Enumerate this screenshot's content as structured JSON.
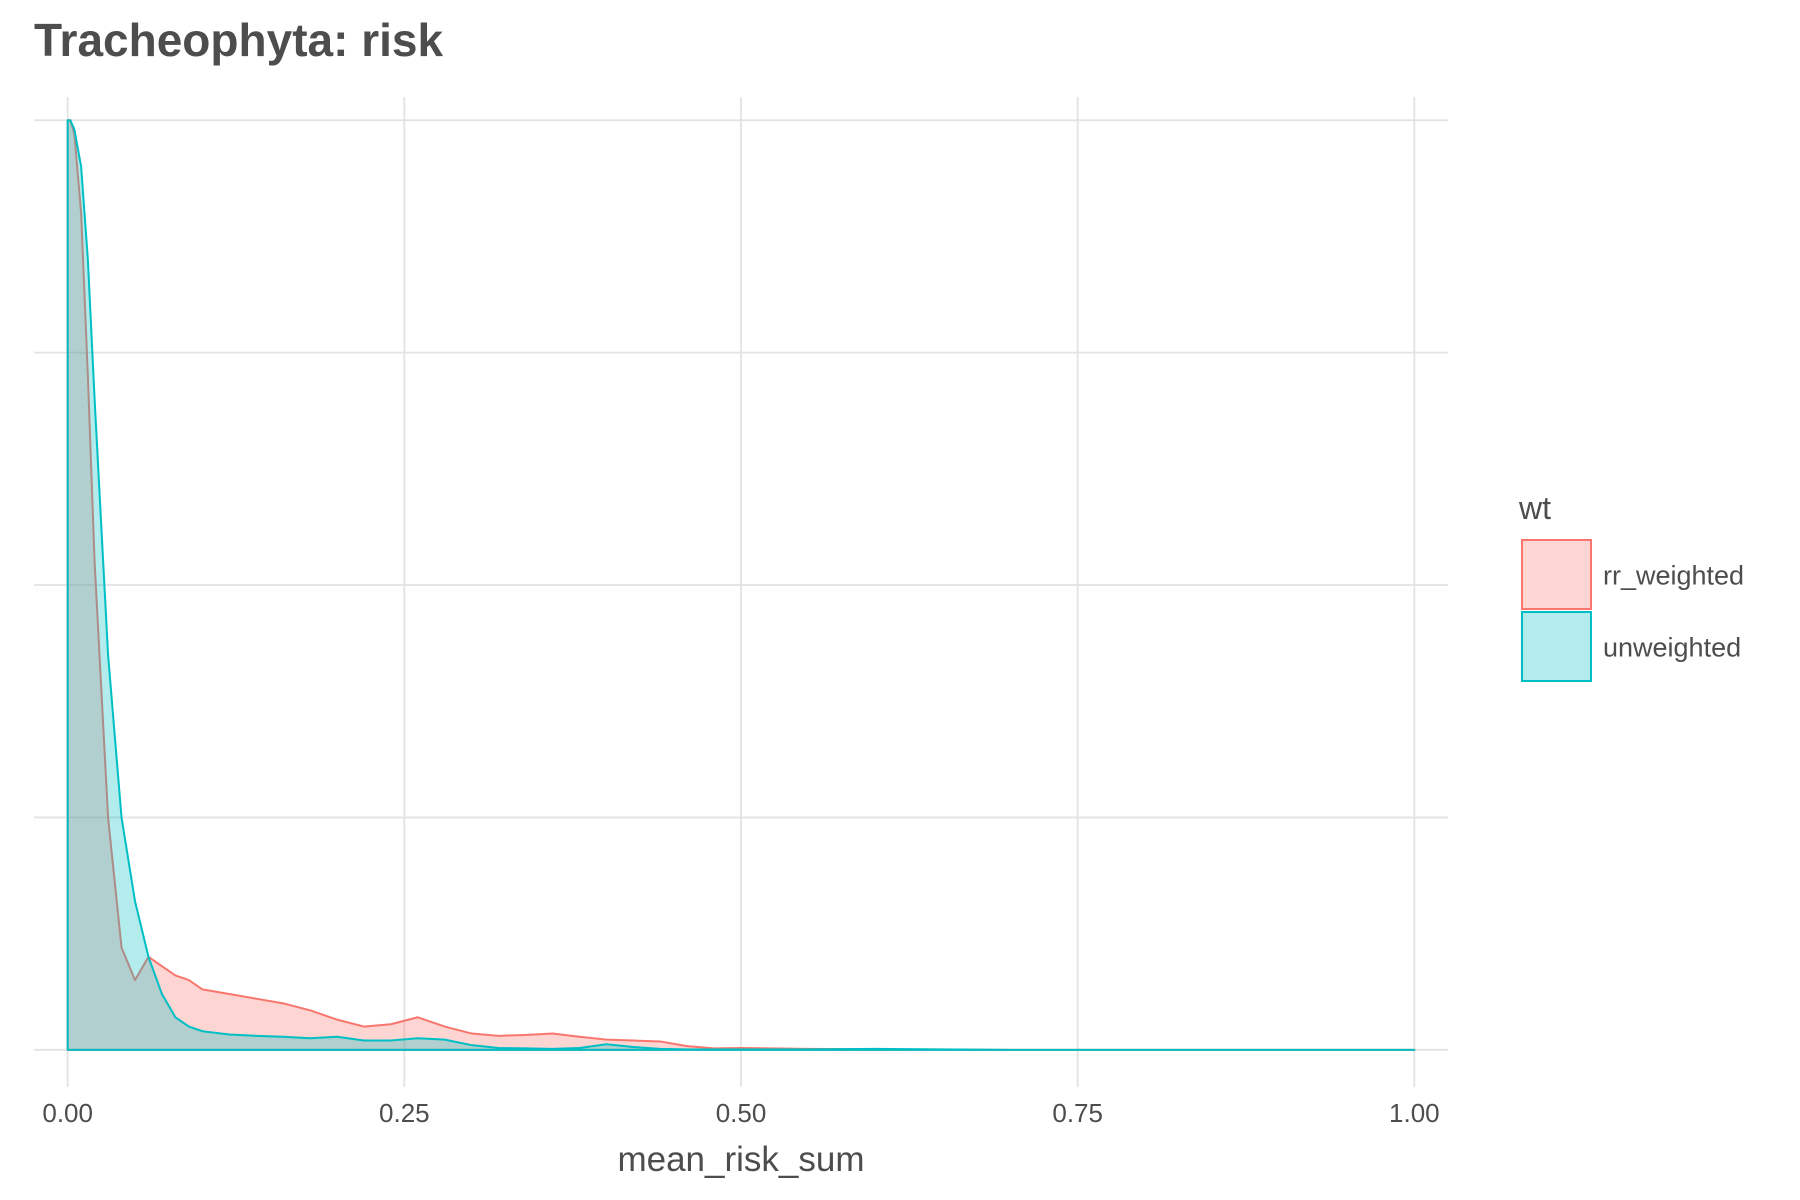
{
  "chart_data": {
    "type": "area",
    "title": "Tracheophyta: risk",
    "xlabel": "mean_risk_sum",
    "ylabel": "",
    "xlim": [
      -0.025,
      1.025
    ],
    "ylim": [
      -0.08,
      2.05
    ],
    "x_ticks": [
      0.0,
      0.25,
      0.5,
      0.75,
      1.0
    ],
    "x_tick_labels": [
      "0.00",
      "0.25",
      "0.50",
      "0.75",
      "1.00"
    ],
    "y_gridlines": [
      0,
      0.5,
      1.0,
      1.5,
      2.0
    ],
    "y_tick_labels_shown": false,
    "grid": true,
    "legend": {
      "title": "wt",
      "position": "right",
      "items": [
        {
          "label": "rr_weighted",
          "fill": "#f8766d",
          "stroke": "#f8766d"
        },
        {
          "label": "unweighted",
          "fill": "#00bfc4",
          "stroke": "#00bfc4"
        }
      ]
    },
    "fill_opacity": 0.3,
    "series": [
      {
        "name": "rr_weighted",
        "color": "#f8766d",
        "x": [
          0.0,
          0.002,
          0.005,
          0.01,
          0.015,
          0.02,
          0.03,
          0.04,
          0.05,
          0.06,
          0.07,
          0.08,
          0.09,
          0.1,
          0.12,
          0.14,
          0.16,
          0.18,
          0.2,
          0.22,
          0.24,
          0.26,
          0.28,
          0.3,
          0.32,
          0.34,
          0.36,
          0.38,
          0.4,
          0.42,
          0.44,
          0.46,
          0.48,
          0.5,
          0.55,
          0.6,
          0.7,
          0.8,
          0.9,
          1.0
        ],
        "y": [
          2.0,
          2.0,
          1.97,
          1.8,
          1.45,
          1.05,
          0.5,
          0.22,
          0.15,
          0.2,
          0.18,
          0.16,
          0.15,
          0.13,
          0.12,
          0.11,
          0.1,
          0.085,
          0.065,
          0.05,
          0.055,
          0.07,
          0.05,
          0.035,
          0.03,
          0.032,
          0.035,
          0.028,
          0.022,
          0.02,
          0.018,
          0.008,
          0.003,
          0.004,
          0.002,
          0.001,
          0.0,
          0.0,
          0.0,
          0.0
        ]
      },
      {
        "name": "unweighted",
        "color": "#00bfc4",
        "x": [
          0.0,
          0.002,
          0.005,
          0.01,
          0.015,
          0.02,
          0.03,
          0.04,
          0.05,
          0.06,
          0.07,
          0.08,
          0.09,
          0.1,
          0.12,
          0.14,
          0.16,
          0.18,
          0.2,
          0.22,
          0.24,
          0.26,
          0.28,
          0.3,
          0.32,
          0.34,
          0.36,
          0.38,
          0.4,
          0.42,
          0.44,
          0.46,
          0.48,
          0.5,
          0.55,
          0.6,
          0.7,
          0.8,
          0.9,
          1.0
        ],
        "y": [
          2.0,
          2.0,
          1.98,
          1.9,
          1.7,
          1.4,
          0.85,
          0.5,
          0.32,
          0.2,
          0.12,
          0.07,
          0.05,
          0.04,
          0.033,
          0.03,
          0.028,
          0.025,
          0.028,
          0.02,
          0.02,
          0.025,
          0.022,
          0.01,
          0.004,
          0.003,
          0.002,
          0.004,
          0.012,
          0.006,
          0.002,
          0.001,
          0.001,
          0.001,
          0.001,
          0.002,
          0.0,
          0.0,
          0.0,
          0.0
        ]
      }
    ]
  }
}
